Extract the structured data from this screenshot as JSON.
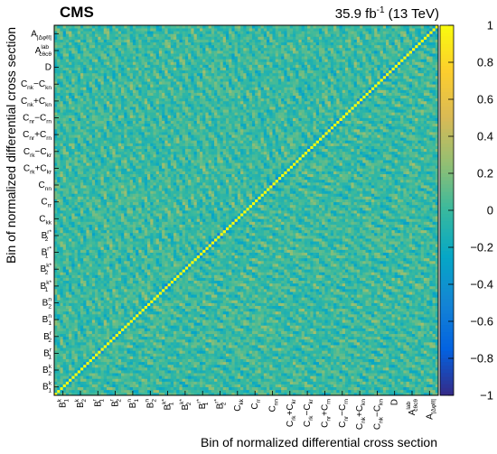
{
  "header": {
    "experiment": "CMS",
    "lumi_value": "35.9 fb",
    "lumi_exponent": "-1",
    "lumi_energy": "(13 TeV)"
  },
  "chart_data": {
    "type": "heatmap",
    "title": "",
    "xlabel": "Bin of normalized differential cross section",
    "ylabel": "Bin of normalized differential cross section",
    "zlim": [
      -1,
      1
    ],
    "colorbar_ticks": [
      "1",
      "0.8",
      "0.6",
      "0.4",
      "0.2",
      "0",
      "−0.2",
      "−0.4",
      "−0.6",
      "−0.8",
      "−1"
    ],
    "colorbar_values": [
      1,
      0.8,
      0.6,
      0.4,
      0.2,
      0,
      -0.2,
      -0.4,
      -0.6,
      -0.8,
      -1
    ],
    "colormap": [
      "#352a87",
      "#0363e1",
      "#1485d4",
      "#06a7c6",
      "#38b99e",
      "#92bf73",
      "#d9ba56",
      "#fcce2e",
      "#f9fb0e"
    ],
    "n_bins": 132,
    "diagonal_value": 1,
    "observables": [
      {
        "base": "B",
        "sup": "k",
        "sub": "1"
      },
      {
        "base": "B",
        "sup": "k",
        "sub": "2"
      },
      {
        "base": "B",
        "sup": "r",
        "sub": "1"
      },
      {
        "base": "B",
        "sup": "r",
        "sub": "2"
      },
      {
        "base": "B",
        "sup": "n",
        "sub": "1"
      },
      {
        "base": "B",
        "sup": "n",
        "sub": "2"
      },
      {
        "base": "B",
        "sup": "k*",
        "sub": "1"
      },
      {
        "base": "B",
        "sup": "k*",
        "sub": "2"
      },
      {
        "base": "B",
        "sup": "r*",
        "sub": "1"
      },
      {
        "base": "B",
        "sup": "r*",
        "sub": "2"
      },
      {
        "base": "C",
        "sup": "",
        "sub": "kk"
      },
      {
        "base": "C",
        "sup": "",
        "sub": "rr"
      },
      {
        "base": "C",
        "sup": "",
        "sub": "nn"
      },
      {
        "base": "C",
        "sup": "",
        "sub": "rk",
        "op": "+",
        "base2": "C",
        "sub2": "kr"
      },
      {
        "base": "C",
        "sup": "",
        "sub": "rk",
        "op": "−",
        "base2": "C",
        "sub2": "kr"
      },
      {
        "base": "C",
        "sup": "",
        "sub": "nr",
        "op": "+",
        "base2": "C",
        "sub2": "rn"
      },
      {
        "base": "C",
        "sup": "",
        "sub": "nr",
        "op": "−",
        "base2": "C",
        "sub2": "rn"
      },
      {
        "base": "C",
        "sup": "",
        "sub": "nk",
        "op": "+",
        "base2": "C",
        "sub2": "kn"
      },
      {
        "base": "C",
        "sup": "",
        "sub": "nk",
        "op": "−",
        "base2": "C",
        "sub2": "kn"
      },
      {
        "base": "D",
        "sup": "",
        "sub": ""
      },
      {
        "base": "A",
        "sup": "lab",
        "sub": "cθcθ"
      },
      {
        "base": "A",
        "sup": "",
        "sub": "|Δφℓℓ|"
      }
    ]
  }
}
